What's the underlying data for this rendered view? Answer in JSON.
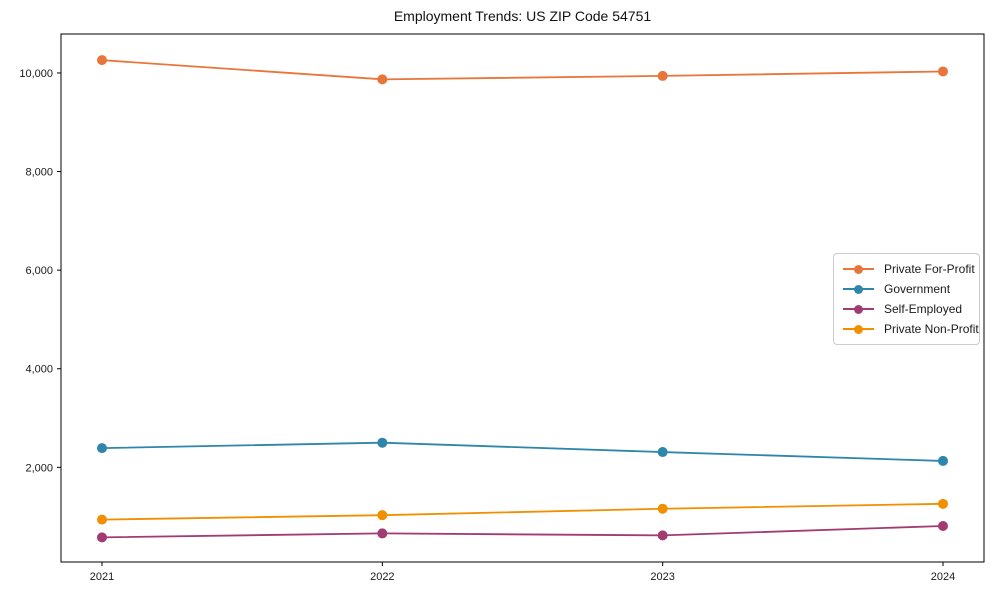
{
  "chart_data": {
    "type": "line",
    "title": "Employment Trends: US ZIP Code 54751",
    "x": [
      2021,
      2022,
      2023,
      2024
    ],
    "xtick_labels": [
      "2021",
      "2022",
      "2023",
      "2024"
    ],
    "yticks": [
      2000,
      4000,
      6000,
      8000,
      10000
    ],
    "ytick_labels": [
      "2,000",
      "4,000",
      "6,000",
      "8,000",
      "10,000"
    ],
    "ylim": [
      80,
      10790
    ],
    "grid": false,
    "legend_position": "center right",
    "marker": "circle",
    "series": [
      {
        "name": "Private For-Profit",
        "color": "#E8763B",
        "values": [
          10260,
          9870,
          9940,
          10030
        ]
      },
      {
        "name": "Government",
        "color": "#2E86AB",
        "values": [
          2390,
          2500,
          2310,
          2130
        ]
      },
      {
        "name": "Self-Employed",
        "color": "#A23B72",
        "values": [
          580,
          660,
          620,
          810
        ]
      },
      {
        "name": "Private Non-Profit",
        "color": "#F18F01",
        "values": [
          940,
          1030,
          1160,
          1260
        ]
      }
    ]
  }
}
